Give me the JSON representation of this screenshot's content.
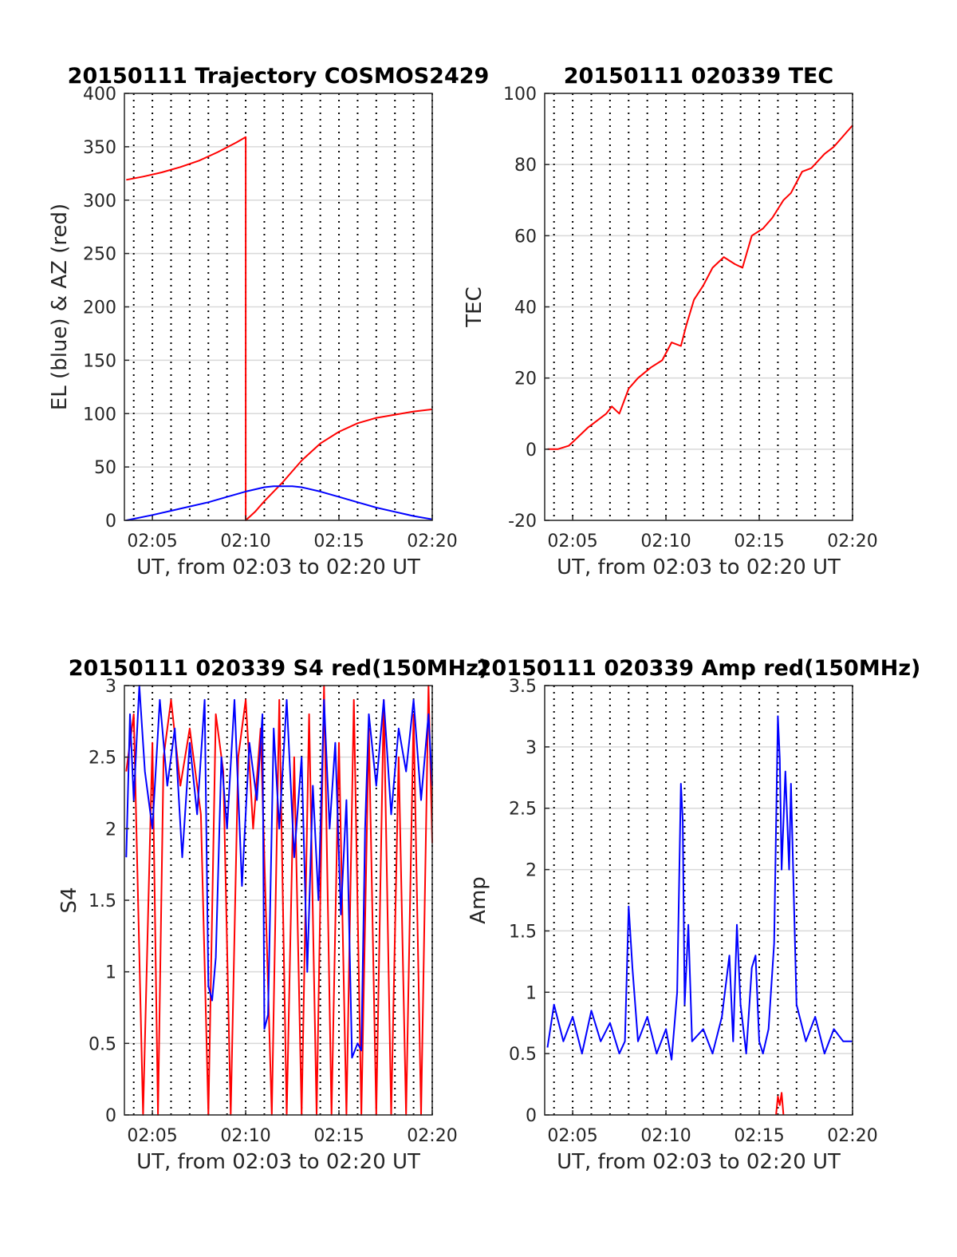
{
  "x_axis": {
    "label": "UT, from 02:03 to 02:20 UT",
    "range_minutes": [
      123.5,
      140
    ],
    "ticks": [
      {
        "t": 125,
        "label": "02:05"
      },
      {
        "t": 130,
        "label": "02:10"
      },
      {
        "t": 135,
        "label": "02:15"
      },
      {
        "t": 140,
        "label": "02:20"
      }
    ],
    "vertical_dotted_grid_every_minutes": 1
  },
  "colors": {
    "red": "#ff0000",
    "blue": "#0000ff",
    "grid": "#d9d9d9",
    "axis": "#262626"
  },
  "chart_data": [
    {
      "id": "trajectory",
      "type": "line",
      "title": "20150111 Trajectory COSMOS2429",
      "xlabel": "UT, from 02:03 to 02:20 UT",
      "ylabel": "EL (blue) & AZ (red)",
      "ylim": [
        0,
        400
      ],
      "yticks": [
        0,
        50,
        100,
        150,
        200,
        250,
        300,
        350,
        400
      ],
      "grid": true,
      "series": [
        {
          "color": "#ff0000",
          "x": [
            123.6,
            124.5,
            125.5,
            126.5,
            127.5,
            128.5,
            129.5,
            130.0,
            130.0,
            130.5,
            131.0,
            132.0,
            133.0,
            134.0,
            135.0,
            136.0,
            137.0,
            138.0,
            139.0,
            140.0
          ],
          "y": [
            319,
            322,
            326,
            331,
            337,
            345,
            354,
            359,
            0,
            8,
            18,
            36,
            56,
            72,
            83,
            91,
            96,
            99,
            102,
            104
          ]
        },
        {
          "color": "#0000ff",
          "x": [
            123.6,
            125,
            126,
            127,
            128,
            129,
            130,
            131,
            131.5,
            132,
            132.5,
            133,
            134,
            135,
            136,
            137,
            138,
            139,
            140
          ],
          "y": [
            0,
            5,
            9,
            13,
            17,
            22,
            27,
            31,
            32,
            32,
            32,
            31,
            27,
            22,
            17,
            12,
            8,
            4,
            1
          ]
        }
      ]
    },
    {
      "id": "tec",
      "type": "line",
      "title": "20150111 020339 TEC",
      "xlabel": "UT, from 02:03 to 02:20 UT",
      "ylabel": "TEC",
      "ylim": [
        -20,
        100
      ],
      "yticks": [
        -20,
        0,
        20,
        40,
        60,
        80,
        100
      ],
      "grid": true,
      "series": [
        {
          "color": "#ff0000",
          "x": [
            123.65,
            124.2,
            124.8,
            125.2,
            125.8,
            126.3,
            126.8,
            127.1,
            127.5,
            128.0,
            128.5,
            129.2,
            129.8,
            130.3,
            130.8,
            131.1,
            131.5,
            132.0,
            132.5,
            133.1,
            133.7,
            134.1,
            134.6,
            135.2,
            135.7,
            136.3,
            136.7,
            137.3,
            137.8,
            138.5,
            139.0,
            139.5,
            140.0
          ],
          "y": [
            0,
            0,
            1,
            3,
            6,
            8,
            10,
            12,
            10,
            17,
            20,
            23,
            25,
            30,
            29,
            35,
            42,
            46,
            51,
            54,
            52,
            51,
            60,
            62,
            65,
            70,
            72,
            78,
            79,
            83,
            85,
            88,
            91
          ]
        }
      ]
    },
    {
      "id": "s4",
      "type": "line",
      "title": "20150111 020339 S4 red(150MHz)",
      "xlabel": "UT, from 02:03 to 02:20 UT",
      "ylabel": "S4",
      "ylim": [
        0,
        3
      ],
      "yticks": [
        0,
        0.5,
        1,
        1.5,
        2,
        2.5,
        3
      ],
      "grid": true,
      "series": [
        {
          "color": "#ff0000",
          "x": [
            123.6,
            124.0,
            124.5,
            125.0,
            125.3,
            125.6,
            126.0,
            126.5,
            127.0,
            127.6,
            128.0,
            128.4,
            128.8,
            129.2,
            129.6,
            130.0,
            130.4,
            130.8,
            131.4,
            131.8,
            132.2,
            132.6,
            133.0,
            133.4,
            133.8,
            134.2,
            134.6,
            135.0,
            135.4,
            135.8,
            136.2,
            136.6,
            137.0,
            137.4,
            137.8,
            138.2,
            138.6,
            139.0,
            139.4,
            139.8,
            140.0
          ],
          "y": [
            2.4,
            2.8,
            0.0,
            2.6,
            0.0,
            2.5,
            2.9,
            2.3,
            2.7,
            2.1,
            0.0,
            2.8,
            2.4,
            0.0,
            2.5,
            2.9,
            2.0,
            2.7,
            0.0,
            2.9,
            0.0,
            2.5,
            0.0,
            2.8,
            0.0,
            3.0,
            0.0,
            2.6,
            0.0,
            2.9,
            0.0,
            2.7,
            0.0,
            2.9,
            0.0,
            2.5,
            0.0,
            2.8,
            0.0,
            3.0,
            1.9
          ]
        },
        {
          "color": "#0000ff",
          "x": [
            123.6,
            123.8,
            124.0,
            124.3,
            124.6,
            125.0,
            125.4,
            125.8,
            126.2,
            126.6,
            127.0,
            127.4,
            127.8,
            128.0,
            128.2,
            128.4,
            128.7,
            129.0,
            129.4,
            129.8,
            130.2,
            130.6,
            130.9,
            131.0,
            131.2,
            131.5,
            131.8,
            132.2,
            132.6,
            133.0,
            133.3,
            133.6,
            133.9,
            134.2,
            134.5,
            134.8,
            135.1,
            135.4,
            135.7,
            136.0,
            136.2,
            136.4,
            136.6,
            137.0,
            137.4,
            137.8,
            138.2,
            138.6,
            139.0,
            139.4,
            139.8,
            140.0
          ],
          "y": [
            1.8,
            2.8,
            2.2,
            3.0,
            2.4,
            2.0,
            2.9,
            2.3,
            2.7,
            1.8,
            2.6,
            2.1,
            2.9,
            0.9,
            0.8,
            1.1,
            2.5,
            2.0,
            2.9,
            1.6,
            2.6,
            2.2,
            2.8,
            0.6,
            0.7,
            2.7,
            2.0,
            2.9,
            1.8,
            2.5,
            1.0,
            2.3,
            1.5,
            2.9,
            2.0,
            2.6,
            1.4,
            2.2,
            0.4,
            0.5,
            0.45,
            2.0,
            2.8,
            2.3,
            2.9,
            2.1,
            2.7,
            2.4,
            2.9,
            2.2,
            2.8,
            2.3
          ]
        }
      ]
    },
    {
      "id": "amp",
      "type": "line",
      "title": "20150111 020339 Amp red(150MHz)",
      "xlabel": "UT, from 02:03 to 02:20 UT",
      "ylabel": "Amp",
      "ylim": [
        0,
        3.5
      ],
      "yticks": [
        0,
        0.5,
        1,
        1.5,
        2,
        2.5,
        3,
        3.5
      ],
      "grid": true,
      "series": [
        {
          "color": "#ff0000",
          "x": [
            135.9,
            136.0,
            136.1,
            136.2,
            136.3
          ],
          "y": [
            0,
            0.15,
            0.08,
            0.18,
            0
          ]
        },
        {
          "color": "#0000ff",
          "x": [
            123.65,
            124.0,
            124.5,
            125.0,
            125.5,
            126.0,
            126.5,
            127.0,
            127.5,
            127.8,
            128.0,
            128.2,
            128.5,
            129.0,
            129.5,
            130.0,
            130.3,
            130.6,
            130.8,
            130.9,
            131.0,
            131.2,
            131.4,
            132.0,
            132.5,
            133.0,
            133.4,
            133.6,
            133.8,
            134.0,
            134.3,
            134.6,
            134.8,
            135.0,
            135.2,
            135.5,
            135.8,
            136.0,
            136.1,
            136.2,
            136.4,
            136.6,
            136.7,
            137.0,
            137.5,
            138.0,
            138.5,
            139.0,
            139.5,
            140.0
          ],
          "y": [
            0.55,
            0.9,
            0.6,
            0.8,
            0.5,
            0.85,
            0.6,
            0.75,
            0.5,
            0.6,
            1.7,
            1.2,
            0.6,
            0.8,
            0.5,
            0.7,
            0.45,
            1.0,
            2.7,
            2.4,
            0.9,
            1.55,
            0.6,
            0.7,
            0.5,
            0.8,
            1.3,
            0.6,
            1.55,
            0.9,
            0.5,
            1.2,
            1.3,
            0.6,
            0.5,
            0.7,
            1.4,
            3.25,
            2.9,
            2.0,
            2.8,
            2.0,
            2.7,
            0.9,
            0.6,
            0.8,
            0.5,
            0.7,
            0.6,
            0.6
          ]
        }
      ]
    }
  ]
}
